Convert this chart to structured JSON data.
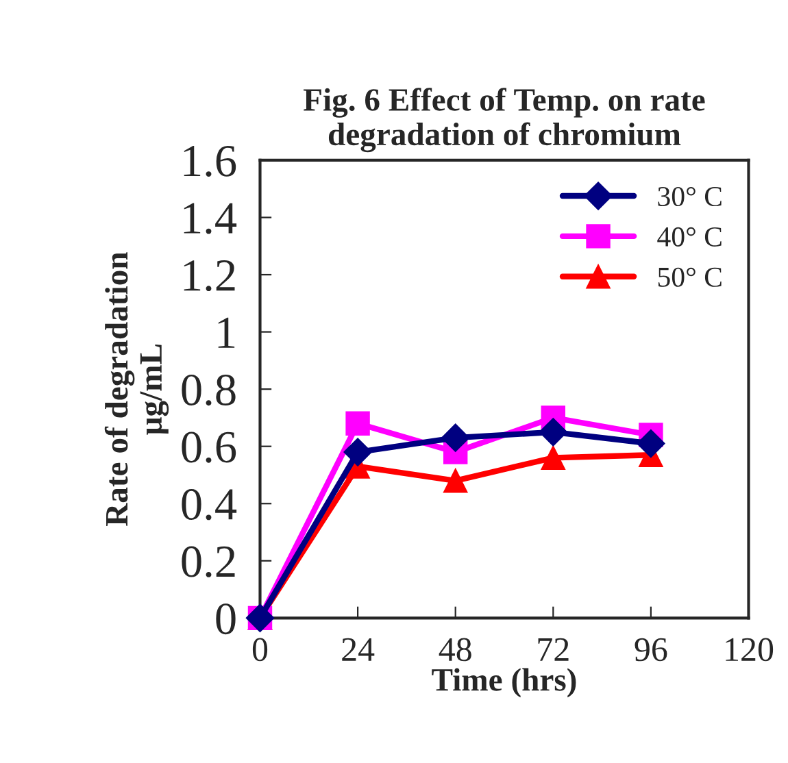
{
  "chart_data": {
    "type": "line",
    "title": "Fig. 6 Effect of Temp. on rate\ndegradation of chromium",
    "xlabel": "Time (hrs)",
    "ylabel": "Rate of degradation\nμg/mL",
    "x": [
      0,
      24,
      48,
      72,
      96
    ],
    "series": [
      {
        "name": "30° C",
        "color": "#000080",
        "marker": "diamond",
        "values": [
          0,
          0.58,
          0.63,
          0.65,
          0.61
        ]
      },
      {
        "name": "40° C",
        "color": "#ff00ff",
        "marker": "square",
        "values": [
          0,
          0.68,
          0.58,
          0.7,
          0.64
        ]
      },
      {
        "name": "50° C",
        "color": "#ff0000",
        "marker": "triangle",
        "values": [
          0,
          0.53,
          0.48,
          0.56,
          0.57
        ]
      }
    ],
    "xlim": [
      0,
      120
    ],
    "xticks": [
      0,
      24,
      48,
      72,
      96,
      120
    ],
    "ylim": [
      0,
      1.6
    ],
    "yticks": [
      0,
      0.2,
      0.4,
      0.6,
      0.8,
      1,
      1.2,
      1.4,
      1.6
    ],
    "grid": false,
    "legend": "top right",
    "line_style": "solid"
  }
}
